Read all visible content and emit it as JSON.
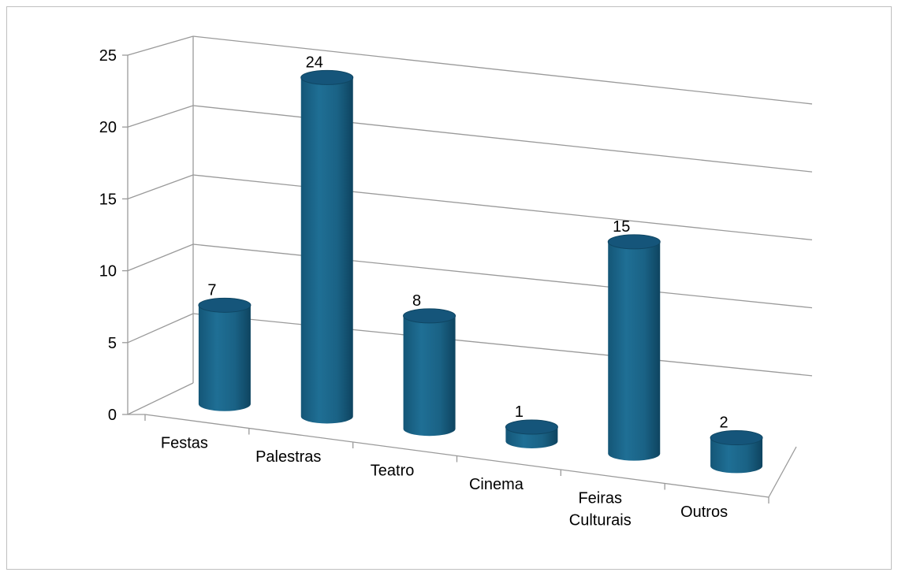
{
  "chart_data": {
    "type": "bar",
    "style": "3d-cylinder",
    "categories": [
      [
        "Festas"
      ],
      [
        "Palestras"
      ],
      [
        "Teatro"
      ],
      [
        "Cinema"
      ],
      [
        "Feiras",
        "Culturais"
      ],
      [
        "Outros"
      ]
    ],
    "values": [
      7,
      24,
      8,
      1,
      15,
      2
    ],
    "data_labels": [
      "7",
      "24",
      "8",
      "1",
      "15",
      "2"
    ],
    "y_ticks": [
      "0",
      "5",
      "10",
      "15",
      "20",
      "25"
    ],
    "ylim": [
      0,
      25
    ],
    "grid": true,
    "legend": "none",
    "colors": {
      "bar": "#1a6285",
      "bar_dark": "#0f4663",
      "bar_top": "#15557a",
      "grid": "#9a9a9a"
    }
  }
}
